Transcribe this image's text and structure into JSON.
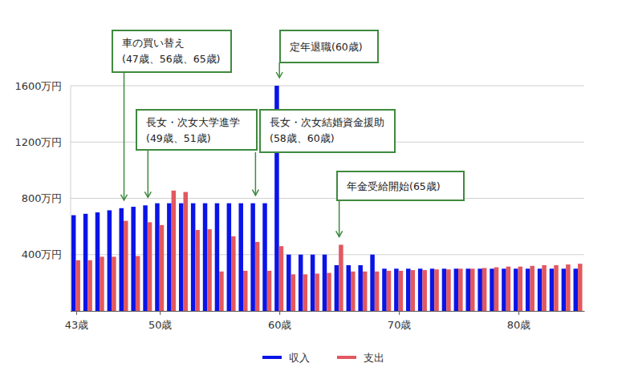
{
  "chart_data": {
    "type": "bar",
    "x": [
      43,
      44,
      45,
      46,
      47,
      48,
      49,
      50,
      51,
      52,
      53,
      54,
      55,
      56,
      57,
      58,
      59,
      60,
      61,
      62,
      63,
      64,
      65,
      66,
      67,
      68,
      69,
      70,
      71,
      72,
      73,
      74,
      75,
      76,
      77,
      78,
      79,
      80,
      81,
      82,
      83,
      84,
      85
    ],
    "xlim": [
      42.5,
      85.5
    ],
    "xticks": [
      {
        "value": 43,
        "label": "43歳"
      },
      {
        "value": 50,
        "label": "50歳"
      },
      {
        "value": 60,
        "label": "60歳"
      },
      {
        "value": 70,
        "label": "70歳"
      },
      {
        "value": 80,
        "label": "80歳"
      }
    ],
    "ylim": [
      0,
      1600
    ],
    "yticks": [
      {
        "value": 400,
        "label": "400万円"
      },
      {
        "value": 800,
        "label": "800万円"
      },
      {
        "value": 1200,
        "label": "1200万円"
      },
      {
        "value": 1600,
        "label": "1600万円"
      }
    ],
    "grid": true,
    "legend": "bottom",
    "series": [
      {
        "name": "収入",
        "color": "#0a14e6",
        "values": [
          680,
          690,
          700,
          715,
          730,
          740,
          750,
          765,
          765,
          765,
          765,
          765,
          765,
          765,
          765,
          765,
          765,
          1600,
          400,
          400,
          400,
          400,
          325,
          325,
          325,
          400,
          300,
          300,
          300,
          300,
          300,
          300,
          300,
          300,
          300,
          300,
          300,
          300,
          300,
          300,
          300,
          300,
          300
        ]
      },
      {
        "name": "支出",
        "color": "#e3585f",
        "values": [
          360,
          360,
          385,
          385,
          640,
          390,
          630,
          610,
          855,
          845,
          575,
          580,
          280,
          530,
          285,
          490,
          285,
          460,
          260,
          260,
          265,
          270,
          470,
          280,
          280,
          280,
          285,
          285,
          290,
          290,
          295,
          295,
          300,
          300,
          305,
          310,
          315,
          315,
          320,
          325,
          325,
          330,
          335
        ]
      }
    ],
    "annotations": [
      {
        "text": [
          "車の買い替え",
          "(47歳、56歳、65歳)"
        ],
        "x": 47
      },
      {
        "text": [
          "長女・次女大学進学",
          "(49歳、51歳)"
        ],
        "x": 49
      },
      {
        "text": [
          "長女・次女結婚資金援助",
          "(58歳、60歳)"
        ],
        "x": 58
      },
      {
        "text": [
          "定年退職(60歳)"
        ],
        "x": 60
      },
      {
        "text": [
          "年金受給開始(65歳)"
        ],
        "x": 65
      }
    ]
  }
}
